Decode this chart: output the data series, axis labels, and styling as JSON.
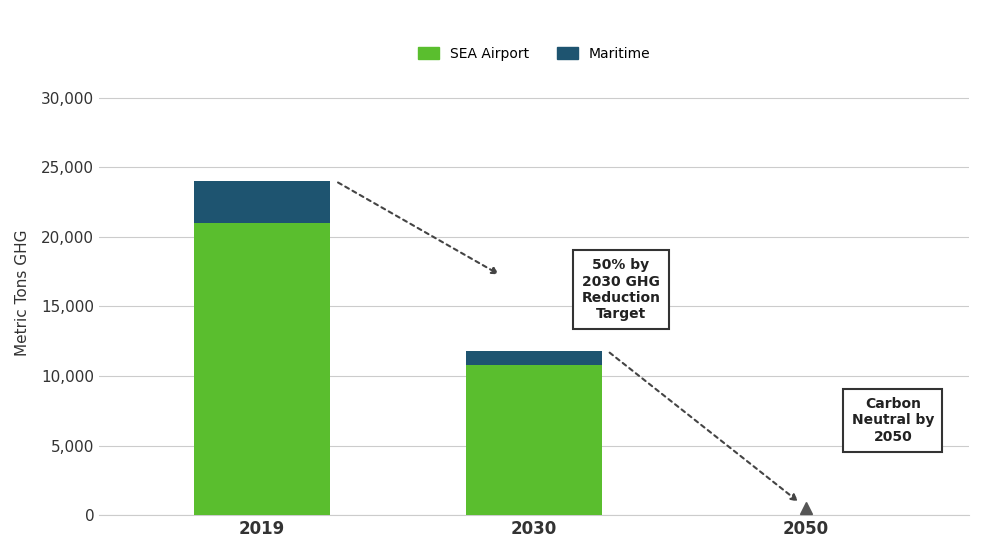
{
  "categories": [
    "2019",
    "2030",
    "2050"
  ],
  "sea_airport_2019": 21000,
  "maritime_2019": 3000,
  "sea_airport_2030": 10800,
  "maritime_2030": 1000,
  "total_2019": 24000,
  "total_2030": 11800,
  "total_2050": 500,
  "color_sea_airport": "#5abe2e",
  "color_maritime": "#1e5470",
  "ylabel": "Metric Tons GHG",
  "ylim": [
    0,
    32000
  ],
  "yticks": [
    0,
    5000,
    10000,
    15000,
    20000,
    25000,
    30000
  ],
  "legend_labels": [
    "SEA Airport",
    "Maritime"
  ],
  "annotation_2030_text": "50% by\n2030 GHG\nReduction\nTarget",
  "annotation_2050_text": "Carbon\nNeutral by\n2050",
  "background_color": "#ffffff",
  "grid_color": "#cccccc"
}
